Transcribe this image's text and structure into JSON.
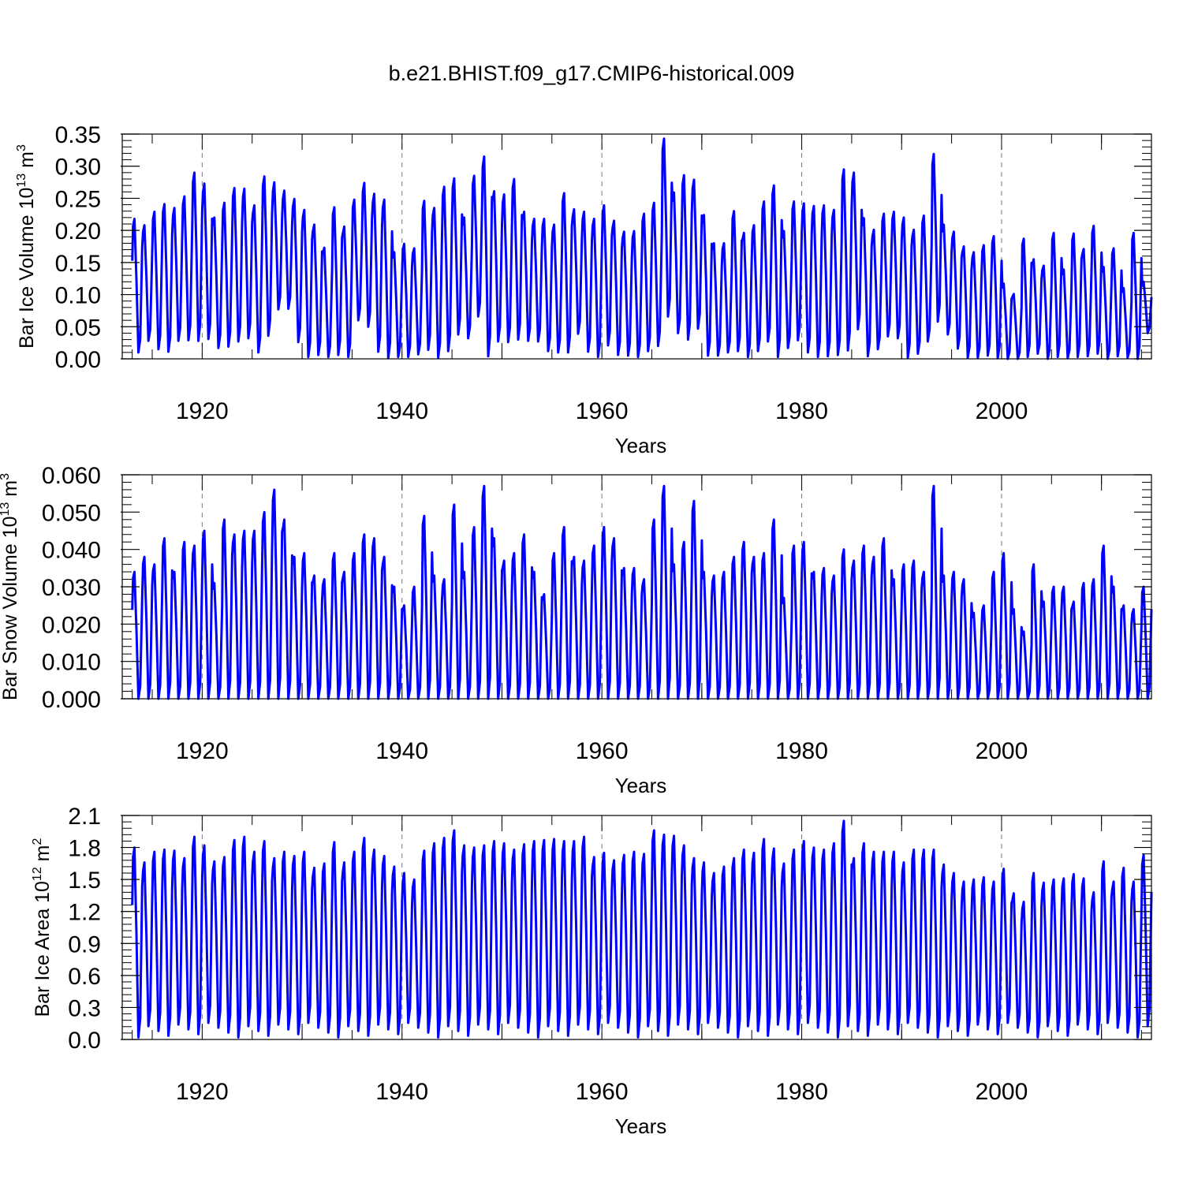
{
  "title": "b.e21.BHIST.f09_g17.CMIP6-historical.009",
  "chart_data": [
    {
      "type": "line",
      "name": "ice-volume",
      "title": "",
      "xlabel": "Years",
      "ylabel": {
        "text": "Bar Ice Volume 10",
        "sup": "13",
        "unit": " m",
        "unit_sup": "3"
      },
      "xlim": [
        1912.0,
        2015.0
      ],
      "ylim": [
        0.0,
        0.35
      ],
      "yticks": [
        "0.00",
        "0.05",
        "0.10",
        "0.15",
        "0.20",
        "0.25",
        "0.30",
        "0.35"
      ],
      "xticks": [
        "1920",
        "1940",
        "1960",
        "1980",
        "2000"
      ],
      "grid": "dashed vertical at 1920, 1940, 1960, 1980, 2000",
      "series_color": "#0000ff",
      "series": [
        {
          "name": "ice volume",
          "x": [
            1913,
            1914,
            1915,
            1916,
            1917,
            1918,
            1919,
            1920,
            1921,
            1922,
            1923,
            1924,
            1925,
            1926,
            1927,
            1928,
            1929,
            1930,
            1931,
            1932,
            1933,
            1934,
            1935,
            1936,
            1937,
            1938,
            1939,
            1940,
            1941,
            1942,
            1943,
            1944,
            1945,
            1946,
            1947,
            1948,
            1949,
            1950,
            1951,
            1952,
            1953,
            1954,
            1955,
            1956,
            1957,
            1958,
            1959,
            1960,
            1961,
            1962,
            1963,
            1964,
            1965,
            1966,
            1967,
            1968,
            1969,
            1970,
            1971,
            1972,
            1973,
            1974,
            1975,
            1976,
            1977,
            1978,
            1979,
            1980,
            1981,
            1982,
            1983,
            1984,
            1985,
            1986,
            1987,
            1988,
            1989,
            1990,
            1991,
            1992,
            1993,
            1994,
            1995,
            1996,
            1997,
            1998,
            1999,
            2000,
            2001,
            2002,
            2003,
            2004,
            2005,
            2006,
            2007,
            2008,
            2009,
            2010,
            2011,
            2012,
            2013,
            2014
          ],
          "max": [
            0.218,
            0.208,
            0.229,
            0.241,
            0.235,
            0.253,
            0.29,
            0.273,
            0.22,
            0.243,
            0.266,
            0.265,
            0.239,
            0.284,
            0.275,
            0.262,
            0.249,
            0.232,
            0.209,
            0.173,
            0.236,
            0.206,
            0.248,
            0.274,
            0.257,
            0.248,
            0.166,
            0.179,
            0.172,
            0.246,
            0.235,
            0.268,
            0.281,
            0.22,
            0.285,
            0.315,
            0.261,
            0.256,
            0.28,
            0.229,
            0.218,
            0.218,
            0.209,
            0.258,
            0.233,
            0.229,
            0.218,
            0.239,
            0.215,
            0.198,
            0.199,
            0.226,
            0.243,
            0.343,
            0.259,
            0.286,
            0.279,
            0.224,
            0.18,
            0.18,
            0.23,
            0.196,
            0.208,
            0.245,
            0.27,
            0.199,
            0.245,
            0.242,
            0.238,
            0.239,
            0.232,
            0.295,
            0.29,
            0.219,
            0.201,
            0.226,
            0.229,
            0.22,
            0.201,
            0.223,
            0.319,
            0.209,
            0.198,
            0.175,
            0.166,
            0.177,
            0.191,
            0.117,
            0.101,
            0.187,
            0.155,
            0.145,
            0.196,
            0.139,
            0.195,
            0.171,
            0.207,
            0.143,
            0.172,
            0.11,
            0.196,
            0.12
          ],
          "min": [
            0.01,
            0.028,
            0.015,
            0.011,
            0.028,
            0.029,
            0.028,
            0.031,
            0.017,
            0.019,
            0.027,
            0.032,
            0.01,
            0.036,
            0.077,
            0.078,
            0.026,
            0.003,
            0.006,
            0.003,
            0.006,
            0.003,
            0.06,
            0.05,
            0.011,
            0.001,
            0.003,
            0.003,
            0.007,
            0.014,
            0.002,
            0.012,
            0.038,
            0.032,
            0.066,
            0.004,
            0.027,
            0.026,
            0.03,
            0.028,
            0.027,
            0.012,
            0.01,
            0.01,
            0.039,
            0.011,
            0.003,
            0.021,
            0.006,
            0.005,
            0.003,
            0.012,
            0.02,
            0.066,
            0.04,
            0.03,
            0.047,
            0.005,
            0.005,
            0.01,
            0.012,
            0.003,
            0.012,
            0.027,
            0.003,
            0.017,
            0.029,
            0.01,
            0.003,
            0.004,
            0.006,
            0.013,
            0.046,
            0.004,
            0.015,
            0.035,
            0.032,
            0.002,
            0.008,
            0.027,
            0.058,
            0.038,
            0.016,
            0.002,
            0.002,
            0.005,
            0.001,
            0.0,
            0.0,
            0.003,
            0.008,
            0.0,
            0.003,
            0.001,
            0.003,
            0.004,
            0.008,
            0.0,
            0.004,
            0.002,
            0.0,
            0.04
          ]
        }
      ]
    },
    {
      "type": "line",
      "name": "snow-volume",
      "title": "",
      "xlabel": "Years",
      "ylabel": {
        "text": "Bar Snow Volume 10",
        "sup": "13",
        "unit": " m",
        "unit_sup": "3"
      },
      "xlim": [
        1912.0,
        2015.0
      ],
      "ylim": [
        0.0,
        0.06
      ],
      "yticks": [
        "0.000",
        "0.010",
        "0.020",
        "0.030",
        "0.040",
        "0.050",
        "0.060"
      ],
      "xticks": [
        "1920",
        "1940",
        "1960",
        "1980",
        "2000"
      ],
      "grid": "dashed vertical at 1920, 1940, 1960, 1980, 2000",
      "series_color": "#0000ff",
      "series": [
        {
          "name": "snow volume",
          "x": [
            1913,
            1914,
            1915,
            1916,
            1917,
            1918,
            1919,
            1920,
            1921,
            1922,
            1923,
            1924,
            1925,
            1926,
            1927,
            1928,
            1929,
            1930,
            1931,
            1932,
            1933,
            1934,
            1935,
            1936,
            1937,
            1938,
            1939,
            1940,
            1941,
            1942,
            1943,
            1944,
            1945,
            1946,
            1947,
            1948,
            1949,
            1950,
            1951,
            1952,
            1953,
            1954,
            1955,
            1956,
            1957,
            1958,
            1959,
            1960,
            1961,
            1962,
            1963,
            1964,
            1965,
            1966,
            1967,
            1968,
            1969,
            1970,
            1971,
            1972,
            1973,
            1974,
            1975,
            1976,
            1977,
            1978,
            1979,
            1980,
            1981,
            1982,
            1983,
            1984,
            1985,
            1986,
            1987,
            1988,
            1989,
            1990,
            1991,
            1992,
            1993,
            1994,
            1995,
            1996,
            1997,
            1998,
            1999,
            2000,
            2001,
            2002,
            2003,
            2004,
            2005,
            2006,
            2007,
            2008,
            2009,
            2010,
            2011,
            2012,
            2013,
            2014
          ],
          "max": [
            0.034,
            0.038,
            0.036,
            0.043,
            0.034,
            0.042,
            0.041,
            0.045,
            0.031,
            0.048,
            0.044,
            0.045,
            0.045,
            0.05,
            0.056,
            0.048,
            0.038,
            0.039,
            0.033,
            0.032,
            0.039,
            0.034,
            0.039,
            0.044,
            0.043,
            0.038,
            0.03,
            0.025,
            0.03,
            0.049,
            0.033,
            0.032,
            0.052,
            0.034,
            0.046,
            0.057,
            0.043,
            0.037,
            0.039,
            0.044,
            0.034,
            0.028,
            0.039,
            0.046,
            0.038,
            0.037,
            0.041,
            0.046,
            0.043,
            0.035,
            0.035,
            0.032,
            0.048,
            0.057,
            0.036,
            0.042,
            0.053,
            0.034,
            0.033,
            0.034,
            0.038,
            0.042,
            0.038,
            0.039,
            0.048,
            0.027,
            0.041,
            0.042,
            0.034,
            0.035,
            0.033,
            0.04,
            0.037,
            0.041,
            0.038,
            0.043,
            0.032,
            0.036,
            0.037,
            0.034,
            0.057,
            0.033,
            0.034,
            0.032,
            0.023,
            0.025,
            0.034,
            0.039,
            0.024,
            0.018,
            0.036,
            0.026,
            0.03,
            0.03,
            0.026,
            0.031,
            0.032,
            0.041,
            0.03,
            0.025,
            0.024,
            0.03,
            0.022
          ]
        }
      ]
    },
    {
      "type": "line",
      "name": "ice-area",
      "title": "",
      "xlabel": "Years",
      "ylabel": {
        "text": "Bar Ice Area 10",
        "sup": "12",
        "unit": " m",
        "unit_sup": "2"
      },
      "xlim": [
        1912.0,
        2015.0
      ],
      "ylim": [
        0.0,
        2.1
      ],
      "yticks": [
        "0.0",
        "0.3",
        "0.6",
        "0.9",
        "1.2",
        "1.5",
        "1.8",
        "2.1"
      ],
      "xticks": [
        "1920",
        "1940",
        "1960",
        "1980",
        "2000"
      ],
      "grid": "dashed vertical at 1920, 1940, 1960, 1980, 2000",
      "series_color": "#0000ff",
      "series": [
        {
          "name": "ice area",
          "x": [
            1913,
            1914,
            1915,
            1916,
            1917,
            1918,
            1919,
            1920,
            1921,
            1922,
            1923,
            1924,
            1925,
            1926,
            1927,
            1928,
            1929,
            1930,
            1931,
            1932,
            1933,
            1934,
            1935,
            1936,
            1937,
            1938,
            1939,
            1940,
            1941,
            1942,
            1943,
            1944,
            1945,
            1946,
            1947,
            1948,
            1949,
            1950,
            1951,
            1952,
            1953,
            1954,
            1955,
            1956,
            1957,
            1958,
            1959,
            1960,
            1961,
            1962,
            1963,
            1964,
            1965,
            1966,
            1967,
            1968,
            1969,
            1970,
            1971,
            1972,
            1973,
            1974,
            1975,
            1976,
            1977,
            1978,
            1979,
            1980,
            1981,
            1982,
            1983,
            1984,
            1985,
            1986,
            1987,
            1988,
            1989,
            1990,
            1991,
            1992,
            1993,
            1994,
            1995,
            1996,
            1997,
            1998,
            1999,
            2000,
            2001,
            2002,
            2003,
            2004,
            2005,
            2006,
            2007,
            2008,
            2009,
            2010,
            2011,
            2012,
            2013,
            2014
          ],
          "max": [
            1.8,
            1.66,
            1.76,
            1.78,
            1.77,
            1.7,
            1.9,
            1.82,
            1.67,
            1.71,
            1.87,
            1.9,
            1.76,
            1.86,
            1.7,
            1.76,
            1.72,
            1.76,
            1.61,
            1.65,
            1.85,
            1.66,
            1.76,
            1.89,
            1.78,
            1.72,
            1.62,
            1.56,
            1.5,
            1.77,
            1.84,
            1.89,
            1.96,
            1.82,
            1.8,
            1.82,
            1.86,
            1.84,
            1.78,
            1.83,
            1.86,
            1.87,
            1.88,
            1.86,
            1.86,
            1.9,
            1.71,
            1.75,
            1.68,
            1.73,
            1.76,
            1.74,
            1.96,
            1.92,
            1.91,
            1.82,
            1.7,
            1.66,
            1.56,
            1.62,
            1.7,
            1.78,
            1.75,
            1.88,
            1.79,
            1.65,
            1.78,
            1.86,
            1.8,
            1.78,
            1.84,
            2.05,
            1.7,
            1.84,
            1.76,
            1.76,
            1.76,
            1.66,
            1.78,
            1.78,
            1.78,
            1.64,
            1.56,
            1.48,
            1.5,
            1.52,
            1.48,
            1.6,
            1.37,
            1.29,
            1.56,
            1.47,
            1.5,
            1.51,
            1.55,
            1.51,
            1.38,
            1.67,
            1.48,
            1.61,
            1.48,
            1.73,
            1.26
          ]
        }
      ]
    }
  ]
}
